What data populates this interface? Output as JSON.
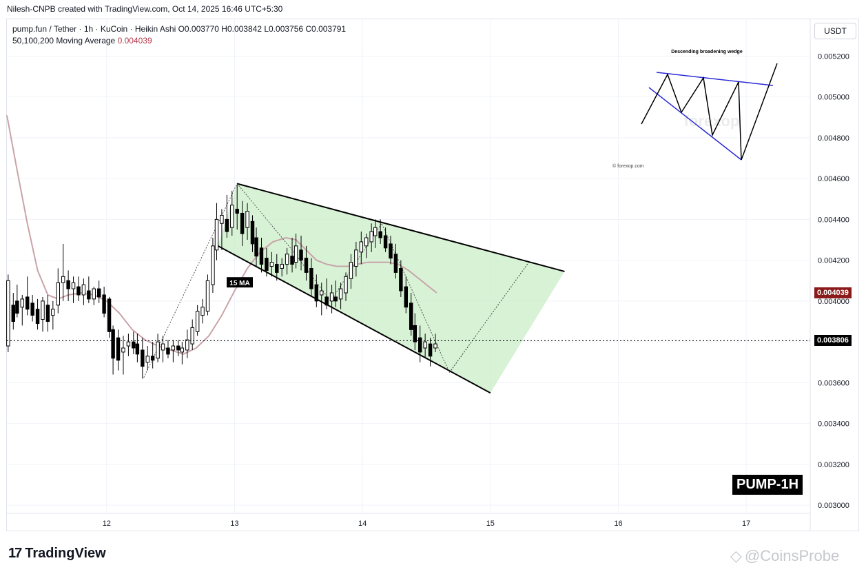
{
  "header": {
    "credit": "Nilesh-CNPB created with TradingView.com, Oct 14, 2025 16:46 UTC+5:30"
  },
  "legend": {
    "line1": "pump.fun / Tether · 1h · KuCoin · Heikin Ashi  O0.003770  H0.003842  L0.003756  C0.003791",
    "ma_label": "50,100,200 Moving Average",
    "ma_value": "0.004039"
  },
  "currency_button": "USDT",
  "annotations": {
    "ma_tag": "15 MA",
    "pump_badge": "PUMP-1H",
    "inset_title": "Descending broadening wedge",
    "inset_credit": "© forexop.com",
    "inset_watermark": "forexop"
  },
  "price_tags": [
    {
      "label": "0.004039",
      "color": "#8b1a1a"
    },
    {
      "label": "0.003806",
      "color": "#000000"
    }
  ],
  "footer": {
    "brand": "TradingView",
    "watermark": "@CoinsProbe"
  },
  "colors": {
    "up": "#ffffff",
    "down": "#000000",
    "ma": "#c9a3a8",
    "wedge_fill": "#c8ecc4",
    "grid": "#f0f3fa"
  },
  "chart_data": {
    "type": "candlestick",
    "y_ticks": [
      "0.005200",
      "0.005000",
      "0.004800",
      "0.004600",
      "0.004400",
      "0.004200",
      "0.004000",
      "0.003800",
      "0.003600",
      "0.003400",
      "0.003200",
      "0.003000"
    ],
    "y_tick_values": [
      0.0052,
      0.005,
      0.0048,
      0.0046,
      0.0044,
      0.0042,
      0.004,
      0.0038,
      0.0036,
      0.0034,
      0.0032,
      0.003
    ],
    "x_ticks": [
      "12",
      "13",
      "14",
      "15",
      "16",
      "17"
    ],
    "x_tick_values": [
      12,
      13,
      14,
      15,
      16,
      17
    ],
    "xlim": [
      11.22,
      17.5
    ],
    "ylim": [
      0.00296,
      0.00538
    ],
    "current_price": 0.003806,
    "ma_value": 0.004039,
    "candles": [
      {
        "t": 11.23,
        "o": 0.00378,
        "h": 0.00413,
        "l": 0.00375,
        "c": 0.0041
      },
      {
        "t": 11.27,
        "o": 0.00398,
        "h": 0.00404,
        "l": 0.00386,
        "c": 0.0039
      },
      {
        "t": 11.3,
        "o": 0.004,
        "h": 0.00408,
        "l": 0.00392,
        "c": 0.00394
      },
      {
        "t": 11.34,
        "o": 0.00397,
        "h": 0.00403,
        "l": 0.00388,
        "c": 0.00401
      },
      {
        "t": 11.38,
        "o": 0.00402,
        "h": 0.00412,
        "l": 0.00393,
        "c": 0.00396
      },
      {
        "t": 11.42,
        "o": 0.00399,
        "h": 0.00403,
        "l": 0.0039,
        "c": 0.00393
      },
      {
        "t": 11.46,
        "o": 0.00396,
        "h": 0.00401,
        "l": 0.00386,
        "c": 0.00389
      },
      {
        "t": 11.5,
        "o": 0.00391,
        "h": 0.00402,
        "l": 0.00385,
        "c": 0.004
      },
      {
        "t": 11.54,
        "o": 0.00398,
        "h": 0.00403,
        "l": 0.00385,
        "c": 0.0039
      },
      {
        "t": 11.58,
        "o": 0.00393,
        "h": 0.004,
        "l": 0.00386,
        "c": 0.00396
      },
      {
        "t": 11.62,
        "o": 0.00398,
        "h": 0.00416,
        "l": 0.00394,
        "c": 0.00409
      },
      {
        "t": 11.66,
        "o": 0.00409,
        "h": 0.00428,
        "l": 0.004,
        "c": 0.00412
      },
      {
        "t": 11.7,
        "o": 0.0041,
        "h": 0.00415,
        "l": 0.004,
        "c": 0.00406
      },
      {
        "t": 11.74,
        "o": 0.00406,
        "h": 0.00412,
        "l": 0.00399,
        "c": 0.00409
      },
      {
        "t": 11.78,
        "o": 0.00407,
        "h": 0.00412,
        "l": 0.004,
        "c": 0.00403
      },
      {
        "t": 11.82,
        "o": 0.00403,
        "h": 0.00411,
        "l": 0.00398,
        "c": 0.00408
      },
      {
        "t": 11.86,
        "o": 0.00405,
        "h": 0.00412,
        "l": 0.00399,
        "c": 0.00401
      },
      {
        "t": 11.9,
        "o": 0.00401,
        "h": 0.00407,
        "l": 0.00398,
        "c": 0.00406
      },
      {
        "t": 11.94,
        "o": 0.00406,
        "h": 0.0041,
        "l": 0.00399,
        "c": 0.00402
      },
      {
        "t": 11.98,
        "o": 0.00403,
        "h": 0.00407,
        "l": 0.00392,
        "c": 0.00394
      },
      {
        "t": 12.02,
        "o": 0.00401,
        "h": 0.00402,
        "l": 0.00382,
        "c": 0.00385
      },
      {
        "t": 12.05,
        "o": 0.00386,
        "h": 0.00388,
        "l": 0.00364,
        "c": 0.00372
      },
      {
        "t": 12.09,
        "o": 0.00382,
        "h": 0.00386,
        "l": 0.00366,
        "c": 0.00371
      },
      {
        "t": 12.13,
        "o": 0.00375,
        "h": 0.00383,
        "l": 0.00364,
        "c": 0.00377
      },
      {
        "t": 12.17,
        "o": 0.00378,
        "h": 0.00384,
        "l": 0.00373,
        "c": 0.0038
      },
      {
        "t": 12.21,
        "o": 0.0038,
        "h": 0.00385,
        "l": 0.00374,
        "c": 0.00377
      },
      {
        "t": 12.24,
        "o": 0.00379,
        "h": 0.00384,
        "l": 0.0037,
        "c": 0.00374
      },
      {
        "t": 12.28,
        "o": 0.00376,
        "h": 0.00382,
        "l": 0.00362,
        "c": 0.00368
      },
      {
        "t": 12.32,
        "o": 0.0037,
        "h": 0.00378,
        "l": 0.00366,
        "c": 0.00373
      },
      {
        "t": 12.36,
        "o": 0.00373,
        "h": 0.0038,
        "l": 0.00367,
        "c": 0.00371
      },
      {
        "t": 12.4,
        "o": 0.00372,
        "h": 0.00384,
        "l": 0.0037,
        "c": 0.0038
      },
      {
        "t": 12.44,
        "o": 0.00376,
        "h": 0.00383,
        "l": 0.0037,
        "c": 0.00379
      },
      {
        "t": 12.48,
        "o": 0.00377,
        "h": 0.00381,
        "l": 0.00372,
        "c": 0.00374
      },
      {
        "t": 12.52,
        "o": 0.00376,
        "h": 0.00381,
        "l": 0.0037,
        "c": 0.00378
      },
      {
        "t": 12.56,
        "o": 0.00378,
        "h": 0.00381,
        "l": 0.00373,
        "c": 0.00376
      },
      {
        "t": 12.59,
        "o": 0.00375,
        "h": 0.0038,
        "l": 0.00369,
        "c": 0.00377
      },
      {
        "t": 12.63,
        "o": 0.00376,
        "h": 0.00386,
        "l": 0.00372,
        "c": 0.00381
      },
      {
        "t": 12.67,
        "o": 0.00379,
        "h": 0.00391,
        "l": 0.00376,
        "c": 0.00387
      },
      {
        "t": 12.71,
        "o": 0.00385,
        "h": 0.00398,
        "l": 0.00383,
        "c": 0.00395
      },
      {
        "t": 12.75,
        "o": 0.00393,
        "h": 0.00401,
        "l": 0.00389,
        "c": 0.00397
      },
      {
        "t": 12.79,
        "o": 0.00395,
        "h": 0.00413,
        "l": 0.00393,
        "c": 0.0041
      },
      {
        "t": 12.83,
        "o": 0.00408,
        "h": 0.00431,
        "l": 0.00404,
        "c": 0.00427
      },
      {
        "t": 12.86,
        "o": 0.00425,
        "h": 0.00448,
        "l": 0.0042,
        "c": 0.0044
      },
      {
        "t": 12.9,
        "o": 0.00438,
        "h": 0.00445,
        "l": 0.00425,
        "c": 0.00442
      },
      {
        "t": 12.94,
        "o": 0.0044,
        "h": 0.00452,
        "l": 0.00431,
        "c": 0.00434
      },
      {
        "t": 12.98,
        "o": 0.00436,
        "h": 0.00454,
        "l": 0.00432,
        "c": 0.00447
      },
      {
        "t": 13.02,
        "o": 0.00445,
        "h": 0.00457,
        "l": 0.00435,
        "c": 0.00443
      },
      {
        "t": 13.06,
        "o": 0.00443,
        "h": 0.00449,
        "l": 0.00427,
        "c": 0.00433
      },
      {
        "t": 13.1,
        "o": 0.00436,
        "h": 0.00448,
        "l": 0.0043,
        "c": 0.00444
      },
      {
        "t": 13.14,
        "o": 0.00439,
        "h": 0.00442,
        "l": 0.00424,
        "c": 0.00428
      },
      {
        "t": 13.17,
        "o": 0.00431,
        "h": 0.00436,
        "l": 0.00417,
        "c": 0.00422
      },
      {
        "t": 13.21,
        "o": 0.00426,
        "h": 0.00431,
        "l": 0.00414,
        "c": 0.00418
      },
      {
        "t": 13.25,
        "o": 0.00421,
        "h": 0.00426,
        "l": 0.00412,
        "c": 0.00415
      },
      {
        "t": 13.29,
        "o": 0.00417,
        "h": 0.00424,
        "l": 0.00412,
        "c": 0.00419
      },
      {
        "t": 13.33,
        "o": 0.00418,
        "h": 0.00423,
        "l": 0.0041,
        "c": 0.00414
      },
      {
        "t": 13.37,
        "o": 0.00416,
        "h": 0.00421,
        "l": 0.00412,
        "c": 0.00418
      },
      {
        "t": 13.41,
        "o": 0.00418,
        "h": 0.00426,
        "l": 0.00413,
        "c": 0.00423
      },
      {
        "t": 13.45,
        "o": 0.00422,
        "h": 0.00431,
        "l": 0.00414,
        "c": 0.00418
      },
      {
        "t": 13.48,
        "o": 0.00419,
        "h": 0.00433,
        "l": 0.00416,
        "c": 0.00427
      },
      {
        "t": 13.52,
        "o": 0.00425,
        "h": 0.00432,
        "l": 0.00415,
        "c": 0.0042
      },
      {
        "t": 13.56,
        "o": 0.00421,
        "h": 0.00427,
        "l": 0.0041,
        "c": 0.00414
      },
      {
        "t": 13.6,
        "o": 0.00416,
        "h": 0.00421,
        "l": 0.00402,
        "c": 0.00406
      },
      {
        "t": 13.64,
        "o": 0.00408,
        "h": 0.00413,
        "l": 0.00397,
        "c": 0.004
      },
      {
        "t": 13.68,
        "o": 0.00403,
        "h": 0.00409,
        "l": 0.00393,
        "c": 0.00405
      },
      {
        "t": 13.72,
        "o": 0.00402,
        "h": 0.00411,
        "l": 0.00396,
        "c": 0.00398
      },
      {
        "t": 13.76,
        "o": 0.004,
        "h": 0.00408,
        "l": 0.00394,
        "c": 0.00404
      },
      {
        "t": 13.79,
        "o": 0.00402,
        "h": 0.0041,
        "l": 0.00397,
        "c": 0.004
      },
      {
        "t": 13.83,
        "o": 0.00401,
        "h": 0.00409,
        "l": 0.00396,
        "c": 0.00406
      },
      {
        "t": 13.87,
        "o": 0.00404,
        "h": 0.00414,
        "l": 0.004,
        "c": 0.00412
      },
      {
        "t": 13.91,
        "o": 0.00411,
        "h": 0.00423,
        "l": 0.00406,
        "c": 0.00419
      },
      {
        "t": 13.95,
        "o": 0.00417,
        "h": 0.00429,
        "l": 0.00412,
        "c": 0.00425
      },
      {
        "t": 13.99,
        "o": 0.00424,
        "h": 0.00434,
        "l": 0.00418,
        "c": 0.00429
      },
      {
        "t": 14.03,
        "o": 0.00427,
        "h": 0.00433,
        "l": 0.00421,
        "c": 0.00431
      },
      {
        "t": 14.07,
        "o": 0.00429,
        "h": 0.00438,
        "l": 0.00424,
        "c": 0.00434
      },
      {
        "t": 14.1,
        "o": 0.00432,
        "h": 0.0044,
        "l": 0.00426,
        "c": 0.00436
      },
      {
        "t": 14.14,
        "o": 0.00434,
        "h": 0.0044,
        "l": 0.00428,
        "c": 0.00431
      },
      {
        "t": 14.18,
        "o": 0.00432,
        "h": 0.00436,
        "l": 0.00424,
        "c": 0.00426
      },
      {
        "t": 14.22,
        "o": 0.00428,
        "h": 0.00432,
        "l": 0.00418,
        "c": 0.00421
      },
      {
        "t": 14.26,
        "o": 0.00423,
        "h": 0.00428,
        "l": 0.00411,
        "c": 0.00414
      },
      {
        "t": 14.3,
        "o": 0.00416,
        "h": 0.0042,
        "l": 0.00402,
        "c": 0.00405
      },
      {
        "t": 14.34,
        "o": 0.00407,
        "h": 0.00412,
        "l": 0.00394,
        "c": 0.00397
      },
      {
        "t": 14.38,
        "o": 0.00399,
        "h": 0.00404,
        "l": 0.00383,
        "c": 0.00386
      },
      {
        "t": 14.41,
        "o": 0.00388,
        "h": 0.00394,
        "l": 0.00376,
        "c": 0.0038
      },
      {
        "t": 14.45,
        "o": 0.00382,
        "h": 0.00388,
        "l": 0.0037,
        "c": 0.00375
      },
      {
        "t": 14.49,
        "o": 0.00377,
        "h": 0.00384,
        "l": 0.00372,
        "c": 0.0038
      },
      {
        "t": 14.53,
        "o": 0.00379,
        "h": 0.00382,
        "l": 0.00368,
        "c": 0.00373
      },
      {
        "t": 14.57,
        "o": 0.00377,
        "h": 0.00384,
        "l": 0.00375,
        "c": 0.00379
      }
    ],
    "ma_series": [
      {
        "t": 11.22,
        "v": 0.00491
      },
      {
        "t": 11.3,
        "v": 0.00464
      },
      {
        "t": 11.38,
        "v": 0.00438
      },
      {
        "t": 11.46,
        "v": 0.00415
      },
      {
        "t": 11.54,
        "v": 0.00403
      },
      {
        "t": 11.62,
        "v": 0.00401
      },
      {
        "t": 11.7,
        "v": 0.00403
      },
      {
        "t": 11.8,
        "v": 0.00404
      },
      {
        "t": 11.9,
        "v": 0.00403
      },
      {
        "t": 12.0,
        "v": 0.004
      },
      {
        "t": 12.1,
        "v": 0.00394
      },
      {
        "t": 12.2,
        "v": 0.00386
      },
      {
        "t": 12.3,
        "v": 0.00381
      },
      {
        "t": 12.4,
        "v": 0.00378
      },
      {
        "t": 12.5,
        "v": 0.00376
      },
      {
        "t": 12.6,
        "v": 0.00374
      },
      {
        "t": 12.7,
        "v": 0.00377
      },
      {
        "t": 12.8,
        "v": 0.00383
      },
      {
        "t": 12.9,
        "v": 0.00393
      },
      {
        "t": 13.0,
        "v": 0.00405
      },
      {
        "t": 13.1,
        "v": 0.00416
      },
      {
        "t": 13.2,
        "v": 0.00424
      },
      {
        "t": 13.3,
        "v": 0.00429
      },
      {
        "t": 13.4,
        "v": 0.00431
      },
      {
        "t": 13.48,
        "v": 0.0043
      },
      {
        "t": 13.56,
        "v": 0.00425
      },
      {
        "t": 13.64,
        "v": 0.0042
      },
      {
        "t": 13.72,
        "v": 0.00418
      },
      {
        "t": 13.8,
        "v": 0.00417
      },
      {
        "t": 13.88,
        "v": 0.00417
      },
      {
        "t": 13.96,
        "v": 0.00418
      },
      {
        "t": 14.04,
        "v": 0.00419
      },
      {
        "t": 14.12,
        "v": 0.00419
      },
      {
        "t": 14.2,
        "v": 0.00419
      },
      {
        "t": 14.28,
        "v": 0.00418
      },
      {
        "t": 14.36,
        "v": 0.00415
      },
      {
        "t": 14.44,
        "v": 0.00411
      },
      {
        "t": 14.52,
        "v": 0.00407
      },
      {
        "t": 14.58,
        "v": 0.00404
      }
    ],
    "wedge": {
      "upper": [
        [
          13.02,
          0.004575
        ],
        [
          15.58,
          0.004145
        ]
      ],
      "lower": [
        [
          12.87,
          0.00427
        ],
        [
          15.0,
          0.00355
        ]
      ],
      "projection_fill": [
        [
          13.02,
          0.004575
        ],
        [
          15.58,
          0.004145
        ],
        [
          15.0,
          0.00355
        ],
        [
          12.87,
          0.00427
        ]
      ]
    },
    "projection_path": [
      [
        14.68,
        0.00365
      ],
      [
        15.3,
        0.00419
      ]
    ],
    "dotted_paths": [
      [
        [
          12.29,
          0.003625
        ],
        [
          13.02,
          0.004575
        ],
        [
          13.45,
          0.00425
        ],
        [
          13.75,
          0.004
        ]
      ],
      [
        [
          13.75,
          0.004
        ],
        [
          14.15,
          0.00438
        ],
        [
          14.68,
          0.00365
        ]
      ]
    ]
  }
}
